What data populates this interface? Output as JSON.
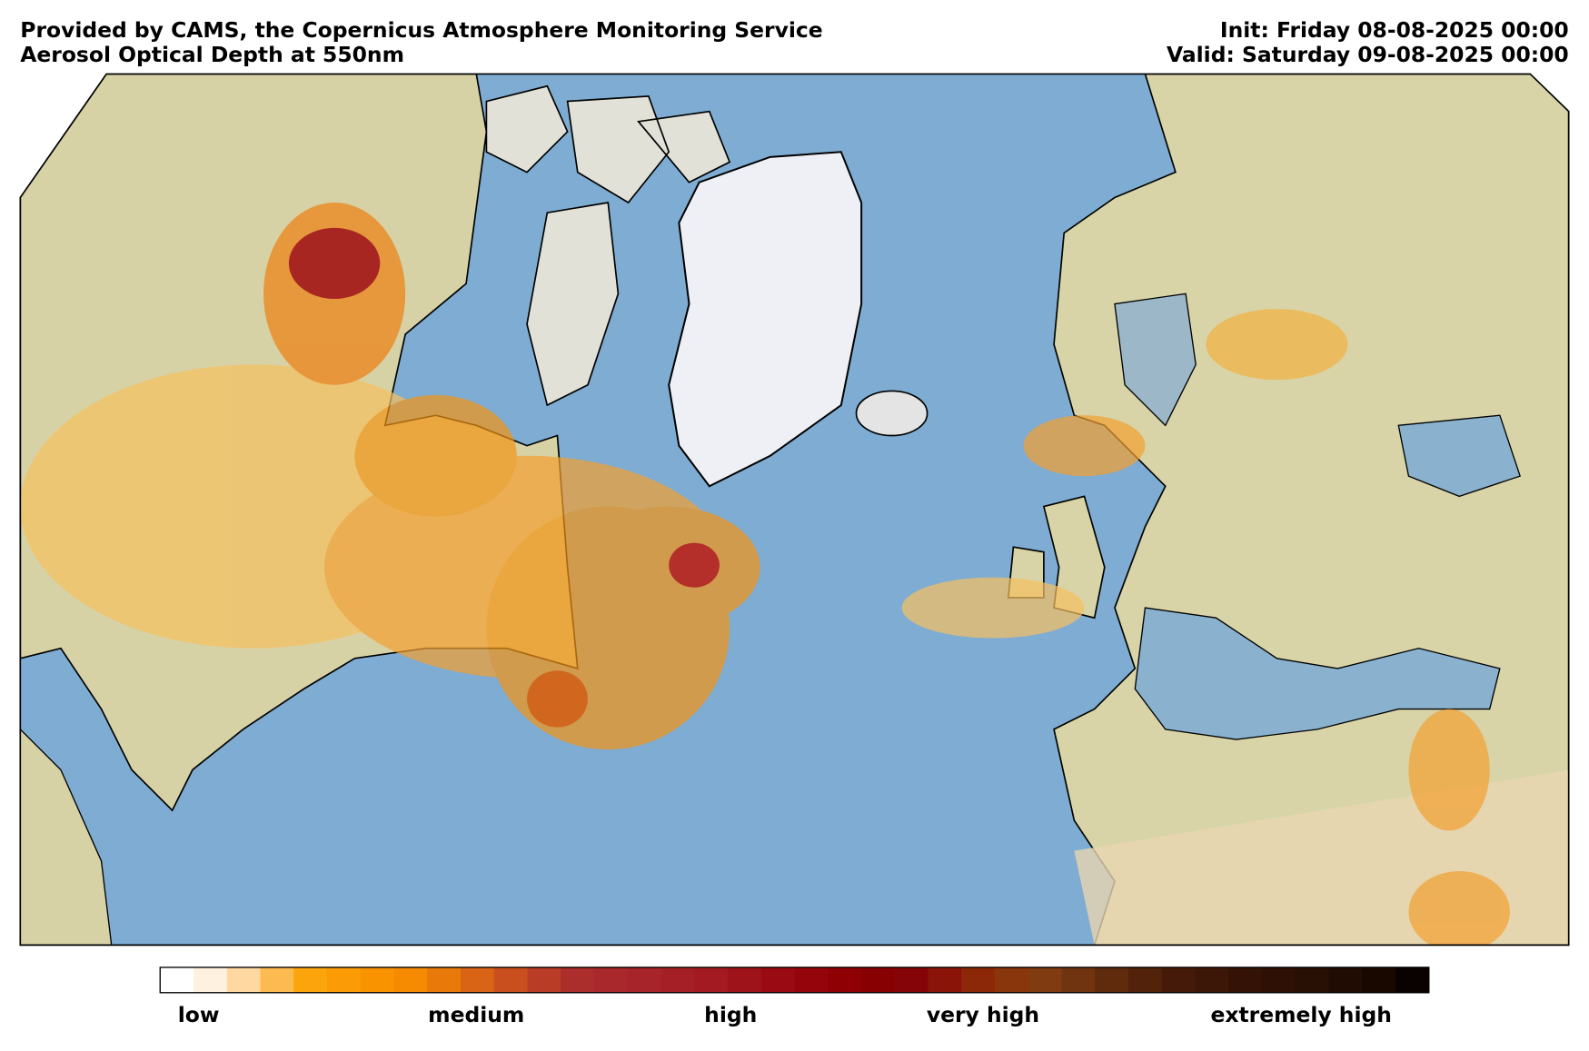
{
  "header": {
    "source": "Provided by CAMS, the Copernicus Atmosphere Monitoring Service",
    "product": "Aerosol Optical Depth at 550nm",
    "init": "Init: Friday 08-08-2025 00:00",
    "valid": "Valid: Saturday 09-08-2025 00:00"
  },
  "colorbar": {
    "colors": [
      "#ffffff",
      "#fff1e0",
      "#fed8a0",
      "#fdba50",
      "#fca40c",
      "#fb9b05",
      "#fa9300",
      "#f68a00",
      "#e97a0a",
      "#d96416",
      "#c9501e",
      "#b83c26",
      "#ab2e2c",
      "#a8282c",
      "#a6242a",
      "#a52026",
      "#a31a22",
      "#9e121a",
      "#990a12",
      "#94040a",
      "#8e0004",
      "#880002",
      "#850408",
      "#8a1408",
      "#8c2808",
      "#8a360c",
      "#803c10",
      "#703410",
      "#602a0c",
      "#52220a",
      "#461a08",
      "#3c1606",
      "#341206",
      "#2e1004",
      "#281004",
      "#200c02",
      "#180800",
      "#0a0200"
    ],
    "labels": [
      "low",
      "medium",
      "high",
      "very high",
      "extremely high"
    ]
  }
}
